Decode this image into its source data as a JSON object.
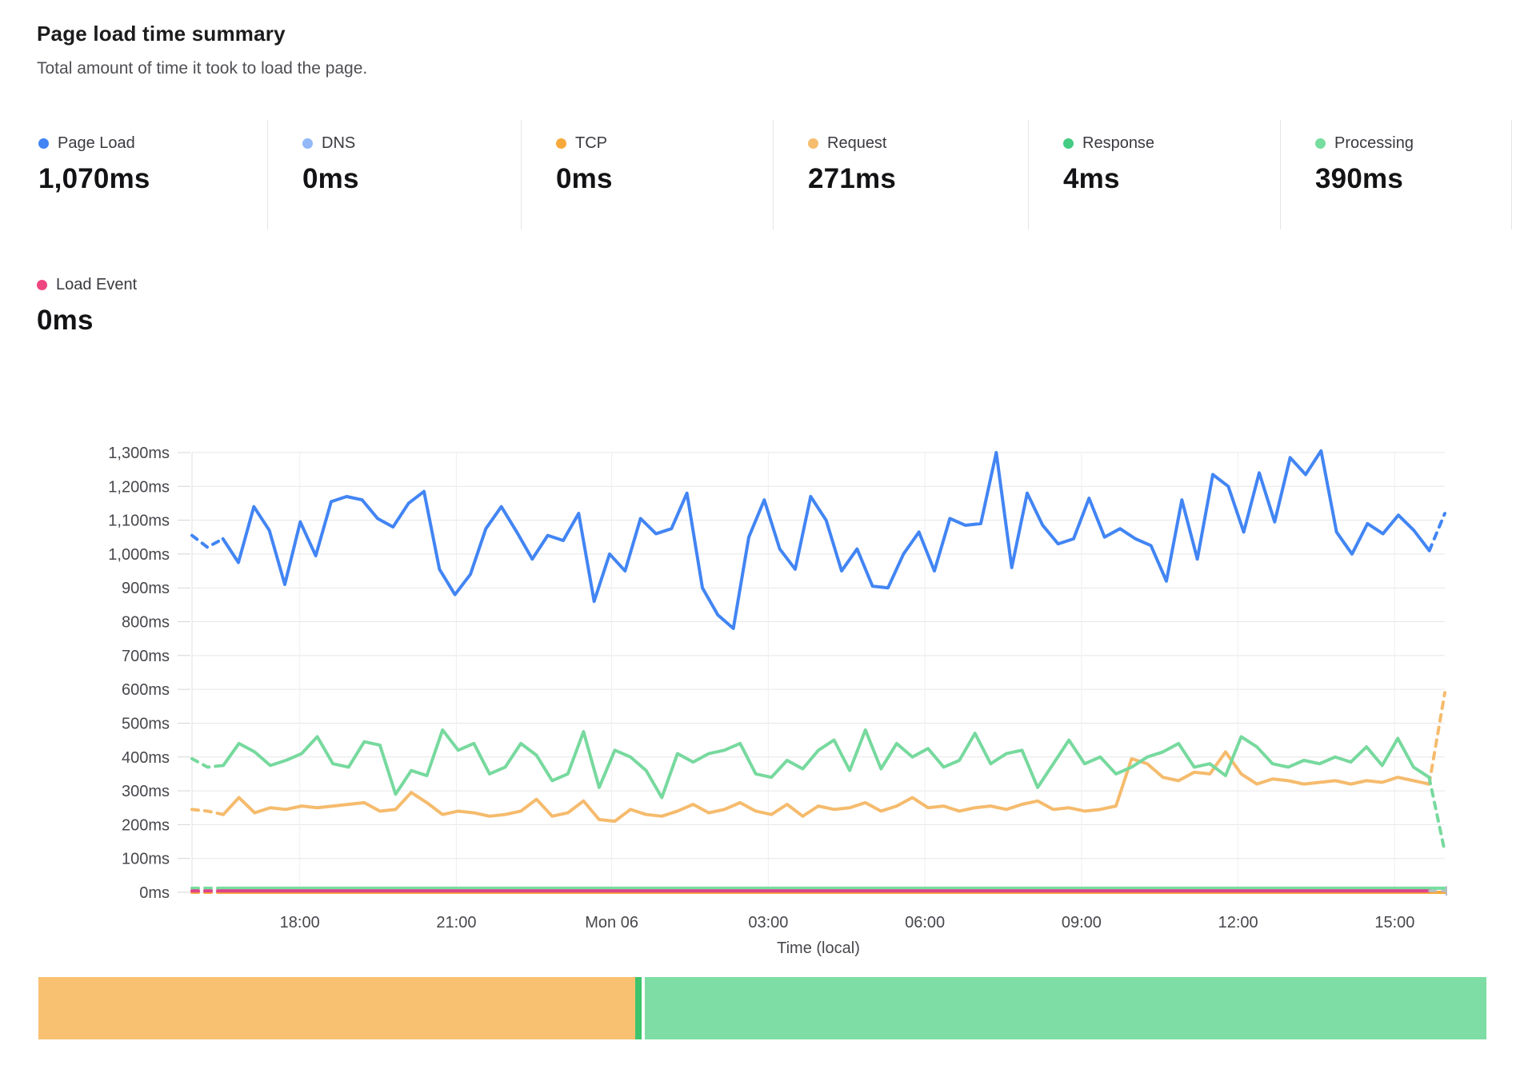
{
  "header": {
    "title": "Page load time summary",
    "subtitle": "Total amount of time it took to load the page."
  },
  "metrics": [
    {
      "label": "Page Load",
      "value": "1,070ms",
      "color": "#4285f4"
    },
    {
      "label": "DNS",
      "value": "0ms",
      "color": "#92b8f8"
    },
    {
      "label": "TCP",
      "value": "0ms",
      "color": "#f6a93b"
    },
    {
      "label": "Request",
      "value": "271ms",
      "color": "#f6bd6e"
    },
    {
      "label": "Response",
      "value": "4ms",
      "color": "#43cc82"
    },
    {
      "label": "Processing",
      "value": "390ms",
      "color": "#77dd9f"
    }
  ],
  "secondary_metric": {
    "label": "Load Event",
    "value": "0ms",
    "color": "#ee4680"
  },
  "chart_data": {
    "type": "line",
    "title": "Page load time summary",
    "xlabel": "Time (local)",
    "ylabel": "",
    "ylim": [
      0,
      1300
    ],
    "grid": true,
    "legend_position": "top",
    "y_ticks": [
      "0ms",
      "100ms",
      "200ms",
      "300ms",
      "400ms",
      "500ms",
      "600ms",
      "700ms",
      "800ms",
      "900ms",
      "1,000ms",
      "1,100ms",
      "1,200ms",
      "1,300ms"
    ],
    "x_ticks": [
      {
        "label": "18:00",
        "pos": 0.086
      },
      {
        "label": "21:00",
        "pos": 0.211
      },
      {
        "label": "Mon 06",
        "pos": 0.335
      },
      {
        "label": "03:00",
        "pos": 0.46
      },
      {
        "label": "06:00",
        "pos": 0.585
      },
      {
        "label": "09:00",
        "pos": 0.71
      },
      {
        "label": "12:00",
        "pos": 0.835
      },
      {
        "label": "15:00",
        "pos": 0.96
      }
    ],
    "series": [
      {
        "name": "DNS",
        "color": "#92b8f8",
        "flat": 0,
        "count": 81
      },
      {
        "name": "TCP",
        "color": "#f6a93b",
        "flat": 0,
        "count": 81
      },
      {
        "name": "Response",
        "color": "#77dd9f",
        "flat": 12,
        "count": 81
      },
      {
        "name": "Load Event",
        "color": "#e0418a",
        "flat": 4,
        "count": 81,
        "tail": 4,
        "tail_color": "#b9bcc2",
        "end_tick": true
      },
      {
        "name": "Request",
        "color": "#f5bb6d",
        "tail": 590,
        "values": [
          245,
          240,
          230,
          280,
          235,
          250,
          245,
          255,
          250,
          255,
          260,
          265,
          240,
          245,
          295,
          265,
          230,
          240,
          235,
          225,
          230,
          240,
          275,
          225,
          235,
          270,
          215,
          210,
          245,
          230,
          225,
          240,
          260,
          235,
          245,
          265,
          240,
          230,
          260,
          225,
          255,
          245,
          250,
          265,
          240,
          255,
          280,
          250,
          255,
          240,
          250,
          255,
          245,
          260,
          270,
          245,
          250,
          240,
          245,
          255,
          395,
          380,
          340,
          330,
          355,
          350,
          415,
          350,
          320,
          335,
          330,
          320,
          325,
          330,
          320,
          330,
          325,
          340,
          330,
          320
        ]
      },
      {
        "name": "Processing",
        "color": "#77d99e",
        "tail": 120,
        "values": [
          395,
          370,
          375,
          440,
          415,
          375,
          390,
          410,
          460,
          380,
          370,
          445,
          435,
          290,
          360,
          345,
          480,
          420,
          440,
          350,
          370,
          440,
          405,
          330,
          350,
          475,
          310,
          420,
          400,
          360,
          280,
          410,
          385,
          410,
          420,
          440,
          350,
          340,
          390,
          365,
          420,
          450,
          360,
          480,
          365,
          440,
          400,
          425,
          370,
          390,
          470,
          380,
          410,
          420,
          310,
          380,
          450,
          380,
          400,
          350,
          370,
          400,
          415,
          440,
          370,
          380,
          345,
          460,
          430,
          380,
          370,
          390,
          380,
          400,
          385,
          430,
          375,
          455,
          370,
          340
        ]
      },
      {
        "name": "Page Load",
        "color": "#4285f4",
        "tail": 1120,
        "values": [
          1055,
          1020,
          1045,
          975,
          1140,
          1070,
          910,
          1095,
          995,
          1155,
          1170,
          1160,
          1105,
          1080,
          1150,
          1185,
          955,
          880,
          940,
          1075,
          1140,
          1065,
          985,
          1055,
          1040,
          1120,
          860,
          1000,
          950,
          1105,
          1060,
          1075,
          1180,
          900,
          820,
          780,
          1050,
          1160,
          1015,
          955,
          1170,
          1100,
          950,
          1015,
          905,
          900,
          1000,
          1065,
          950,
          1105,
          1085,
          1090,
          1300,
          960,
          1180,
          1085,
          1030,
          1045,
          1165,
          1050,
          1075,
          1045,
          1025,
          920,
          1160,
          985,
          1235,
          1200,
          1065,
          1240,
          1095,
          1285,
          1235,
          1305,
          1065,
          1000,
          1090,
          1060,
          1115,
          1070,
          1010
        ]
      }
    ]
  },
  "bottom_bar": {
    "segments": [
      {
        "name": "request-share",
        "color": "#f8c172",
        "width_pct": 41.2
      },
      {
        "name": "divider-sliver",
        "color": "#3ec46d",
        "width_pct": 0.45
      },
      {
        "name": "gap",
        "color": "#ffffff",
        "width_pct": 0.22
      },
      {
        "name": "processing-share",
        "color": "#7edda4",
        "width_pct": 58.13
      }
    ]
  }
}
